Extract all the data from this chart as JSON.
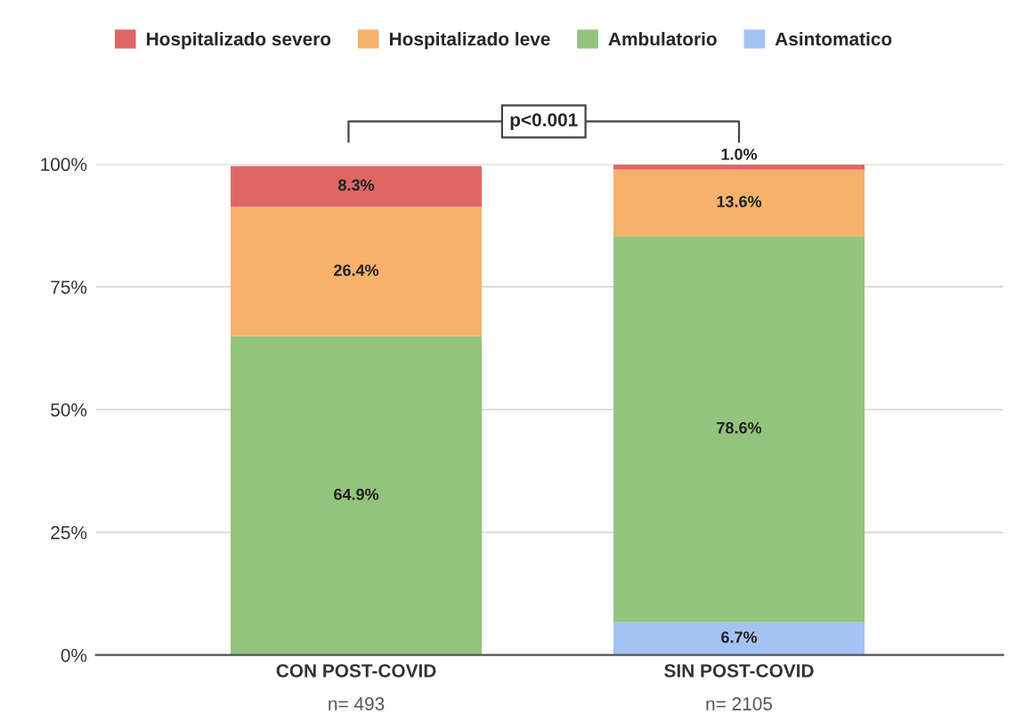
{
  "chart_data": {
    "type": "bar",
    "stacked": true,
    "categories": [
      "CON POST-COVID\nn= 493",
      "SIN POST-COVID\nn= 2105"
    ],
    "series": [
      {
        "name": "Asintomatico",
        "color": "#a4c2f4",
        "values": [
          null,
          6.7
        ],
        "value_labels": [
          null,
          "6.7%"
        ]
      },
      {
        "name": "Ambulatorio",
        "color": "#93c47d",
        "values": [
          64.9,
          78.6
        ],
        "value_labels": [
          "64.9%",
          "78.6%"
        ]
      },
      {
        "name": "Hospitalizado leve",
        "color": "#f6b26b",
        "values": [
          26.4,
          13.6
        ],
        "value_labels": [
          "26.4%",
          "13.6%"
        ]
      },
      {
        "name": "Hospitalizado severo",
        "color": "#e06666",
        "values": [
          8.3,
          1.0
        ],
        "value_labels": [
          "8.3%",
          "1.0%"
        ]
      }
    ],
    "ylim": [
      0,
      100
    ],
    "yticks": [
      {
        "value": 0,
        "label": "0%"
      },
      {
        "value": 25,
        "label": "25%"
      },
      {
        "value": 50,
        "label": "50%"
      },
      {
        "value": 75,
        "label": "75%"
      },
      {
        "value": 100,
        "label": "100%"
      }
    ],
    "annotations": [
      "p<0.001"
    ],
    "grid": "y",
    "legend": "top"
  }
}
